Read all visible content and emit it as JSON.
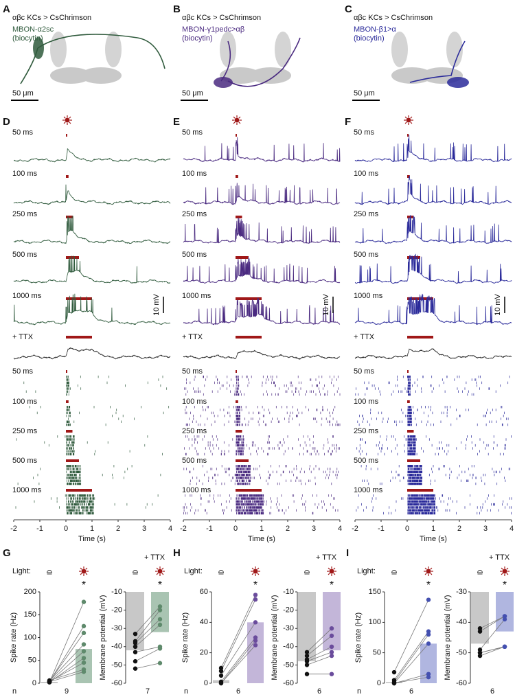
{
  "panel_letters": [
    "A",
    "B",
    "C",
    "D",
    "E",
    "F",
    "G",
    "H",
    "I"
  ],
  "anatomy": [
    {
      "genotype": "αβc KCs > CsChrimson",
      "neuron": "MBON-α2sc",
      "stain": "(biocytin)",
      "scale": "50 μm",
      "color": "#2f5a3c"
    },
    {
      "genotype": "αβc KCs > CsChrimson",
      "neuron": "MBON-γ1pedc>αβ",
      "stain": "(biocytin)",
      "scale": "50 μm",
      "color": "#4a2a80"
    },
    {
      "genotype": "αβc KCs > CsChrimson",
      "neuron": "MBON-β1>α",
      "stain": "(biocytin)",
      "scale": "50 μm",
      "color": "#2a2a9a"
    }
  ],
  "chart_data": [
    {
      "type": "trace-raster",
      "color": "#2f5a3c",
      "ttx_color": "#222222",
      "stim_color": "#a01818",
      "categories": [
        "50 ms",
        "100 ms",
        "250 ms",
        "500 ms",
        "1000 ms"
      ],
      "ttx_label": "+ TTX",
      "scale_label": "10 mV",
      "xlim": [
        -2,
        4
      ],
      "xticks": [
        -2,
        -1,
        0,
        1,
        2,
        3,
        4
      ],
      "xlabel": "Time (s)"
    },
    {
      "type": "trace-raster",
      "color": "#4a2a80",
      "ttx_color": "#222222",
      "stim_color": "#a01818",
      "categories": [
        "50 ms",
        "100 ms",
        "250 ms",
        "500 ms",
        "1000 ms"
      ],
      "ttx_label": "+ TTX",
      "scale_label": "10 mV",
      "xlim": [
        -2,
        4
      ],
      "xticks": [
        -2,
        -1,
        0,
        1,
        2,
        3,
        4
      ],
      "xlabel": "Time (s)"
    },
    {
      "type": "trace-raster",
      "color": "#2a2a9a",
      "ttx_color": "#222222",
      "stim_color": "#a01818",
      "categories": [
        "50 ms",
        "100 ms",
        "250 ms",
        "500 ms",
        "1000 ms"
      ],
      "ttx_label": "+ TTX",
      "scale_label": "10 mV",
      "xlim": [
        -2,
        4
      ],
      "xticks": [
        -2,
        -1,
        0,
        1,
        2,
        3,
        4
      ],
      "xlabel": "Time (s)"
    },
    {
      "type": "bar-dot",
      "light_label": "Light:",
      "ylabel": "Spike rate (Hz)",
      "n_label": "n",
      "n": "9",
      "significance": "*",
      "ylim": [
        0,
        200
      ],
      "yticks": [
        0,
        50,
        100,
        150,
        200
      ],
      "values": [
        3,
        75
      ],
      "colors": [
        "#c8c8c8",
        "#a9c4b2"
      ],
      "point_colors": [
        "#111111",
        "#5f8a6c"
      ],
      "points": [
        [
          2,
          3,
          4,
          5,
          3,
          2,
          4,
          6,
          3
        ],
        [
          178,
          125,
          110,
          85,
          70,
          55,
          45,
          30,
          25
        ]
      ]
    },
    {
      "type": "bar-dot",
      "title": "+ TTX",
      "ylabel": "Membrane potential (mV)",
      "n": "7",
      "significance": "*",
      "ylim": [
        -60,
        -10
      ],
      "yticks": [
        -10,
        -20,
        -30,
        -40,
        -50,
        -60
      ],
      "values": [
        -42,
        -32
      ],
      "colors": [
        "#c8c8c8",
        "#a9c4b2"
      ],
      "point_colors": [
        "#111111",
        "#5f8a6c"
      ],
      "points": [
        [
          -33,
          -37,
          -38,
          -40,
          -43,
          -48,
          -52
        ],
        [
          -18,
          -20,
          -25,
          -28,
          -40,
          -41,
          -49
        ]
      ]
    },
    {
      "type": "bar-dot",
      "light_label": "Light:",
      "ylabel": "Spike rate (Hz)",
      "n_label": "n",
      "n": "6",
      "significance": "*",
      "ylim": [
        0,
        60
      ],
      "yticks": [
        0,
        20,
        40,
        60
      ],
      "values": [
        2,
        40
      ],
      "colors": [
        "#c8c8c8",
        "#c3b6d9"
      ],
      "point_colors": [
        "#111111",
        "#6a4c9c"
      ],
      "points": [
        [
          10,
          8,
          5,
          1,
          0,
          0
        ],
        [
          58,
          55,
          40,
          30,
          28,
          25
        ]
      ]
    },
    {
      "type": "bar-dot",
      "title": "+ TTX",
      "ylabel": "Membrane potential (mV)",
      "n": "6",
      "significance": "*",
      "ylim": [
        -60,
        -10
      ],
      "yticks": [
        -10,
        -20,
        -30,
        -40,
        -50,
        -60
      ],
      "values": [
        -48,
        -42
      ],
      "colors": [
        "#c8c8c8",
        "#c3b6d9"
      ],
      "point_colors": [
        "#111111",
        "#6a4c9c"
      ],
      "points": [
        [
          -43,
          -45,
          -47,
          -48,
          -50,
          -55
        ],
        [
          -30,
          -34,
          -40,
          -43,
          -45,
          -55
        ]
      ]
    },
    {
      "type": "bar-dot",
      "light_label": "Light:",
      "ylabel": "Spike rate (Hz)",
      "n_label": "n",
      "n": "6",
      "significance": "*",
      "ylim": [
        0,
        150
      ],
      "yticks": [
        0,
        50,
        100,
        150
      ],
      "values": [
        2,
        65
      ],
      "colors": [
        "#c8c8c8",
        "#b0b6e0"
      ],
      "point_colors": [
        "#111111",
        "#4450b0"
      ],
      "points": [
        [
          18,
          5,
          2,
          0,
          0,
          0
        ],
        [
          137,
          85,
          80,
          65,
          15,
          10
        ]
      ]
    },
    {
      "type": "bar-dot",
      "title": "+ TTX",
      "ylabel": "Membrane potential (mV)",
      "n": "6",
      "significance": "*",
      "ylim": [
        -60,
        -30
      ],
      "yticks": [
        -30,
        -40,
        -50,
        -60
      ],
      "values": [
        -47,
        -43
      ],
      "colors": [
        "#c8c8c8",
        "#b0b6e0"
      ],
      "point_colors": [
        "#111111",
        "#4450b0"
      ],
      "points": [
        [
          -42,
          -43,
          -49,
          -50,
          -50,
          -51
        ],
        [
          -38,
          -38,
          -39,
          -48,
          -48,
          -48
        ]
      ]
    }
  ]
}
